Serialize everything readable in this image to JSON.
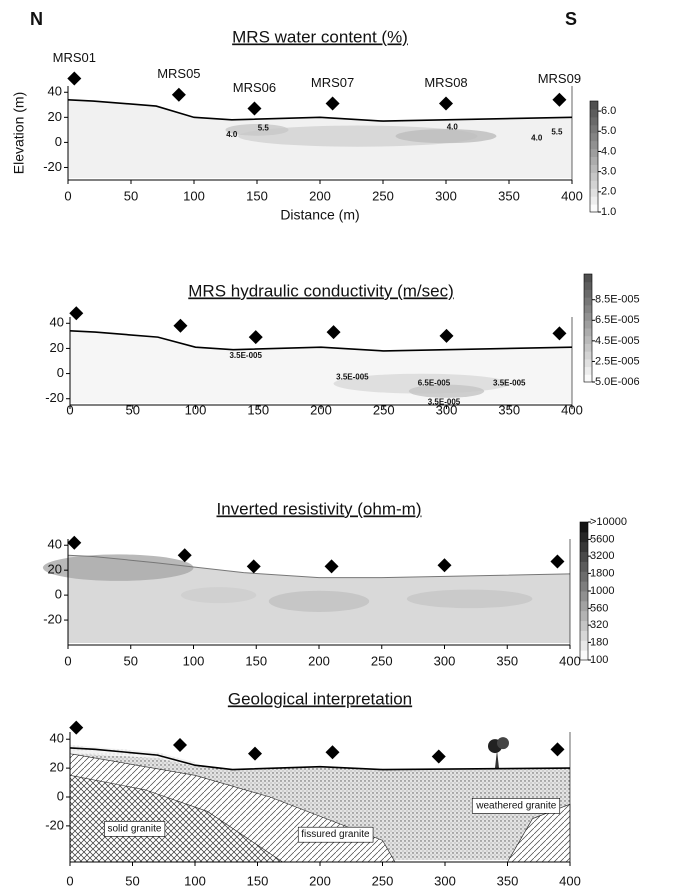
{
  "chart_data": [
    {
      "type": "section",
      "title": "MRS water content (%)",
      "left_label": "N",
      "right_label": "S",
      "xlabel": "Distance (m)",
      "ylabel": "Elevation (m)",
      "xlim": [
        0,
        400
      ],
      "xticks": [
        0,
        50,
        100,
        150,
        200,
        250,
        300,
        350,
        400
      ],
      "ylim": [
        -30,
        45
      ],
      "yticks": [
        -20,
        0,
        20,
        40
      ],
      "markers": {
        "labels": [
          "MRS01",
          "MRS05",
          "MRS06",
          "MRS07",
          "MRS08",
          "MRS09"
        ],
        "x": [
          5,
          88,
          148,
          210,
          300,
          390
        ],
        "y": [
          51,
          38,
          27,
          31,
          31,
          34
        ]
      },
      "surface": {
        "x": [
          0,
          20,
          70,
          100,
          130,
          200,
          250,
          400
        ],
        "y": [
          34,
          33,
          29,
          20,
          18,
          20,
          17,
          20
        ]
      },
      "colorbar": {
        "clim": [
          1,
          6.5
        ],
        "log": false,
        "ticks": [
          {
            "value": 6,
            "label": "6.0"
          },
          {
            "value": 5,
            "label": "5.0"
          },
          {
            "value": 4,
            "label": "4.0"
          },
          {
            "value": 3,
            "label": "3.0"
          },
          {
            "value": 2,
            "label": "2.0"
          },
          {
            "value": 1,
            "label": "1.0"
          }
        ]
      },
      "annotations": [
        {
          "text": "4.0",
          "x": 130,
          "y": 6
        },
        {
          "text": "5.5",
          "x": 155,
          "y": 11
        },
        {
          "text": "4.0",
          "x": 305,
          "y": 12
        },
        {
          "text": "4.0",
          "x": 372,
          "y": 3
        },
        {
          "text": "5.5",
          "x": 388,
          "y": 8
        }
      ]
    },
    {
      "type": "section",
      "title": "MRS hydraulic conductivity (m/sec)",
      "xlim": [
        0,
        400
      ],
      "xticks": [
        0,
        50,
        100,
        150,
        200,
        250,
        300,
        350,
        400
      ],
      "ylim": [
        -25,
        45
      ],
      "yticks": [
        -20,
        0,
        20,
        40
      ],
      "markers": {
        "x": [
          5,
          88,
          148,
          210,
          300,
          390
        ],
        "y": [
          48,
          38,
          29,
          33,
          30,
          32
        ]
      },
      "surface": {
        "x": [
          0,
          20,
          70,
          100,
          130,
          200,
          250,
          400
        ],
        "y": [
          34,
          33,
          29,
          21,
          19,
          21,
          18,
          21
        ]
      },
      "colorbar": {
        "clim": [
          5e-06,
          0.00011
        ],
        "log": false,
        "ticks": [
          {
            "value": 8.5e-05,
            "label": "8.5E-005"
          },
          {
            "value": 6.5e-05,
            "label": "6.5E-005"
          },
          {
            "value": 4.5e-05,
            "label": "4.5E-005"
          },
          {
            "value": 2.5e-05,
            "label": "2.5E-005"
          },
          {
            "value": 5e-06,
            "label": "5.0E-006"
          }
        ]
      },
      "annotations": [
        {
          "text": "3.5E-005",
          "x": 140,
          "y": 14
        },
        {
          "text": "3.5E-005",
          "x": 225,
          "y": -3
        },
        {
          "text": "6.5E-005",
          "x": 290,
          "y": -8
        },
        {
          "text": "3.5E-005",
          "x": 350,
          "y": -8
        },
        {
          "text": "3.5E-005",
          "x": 298,
          "y": -23
        }
      ]
    },
    {
      "type": "section",
      "title": "Inverted resistivity (ohm-m)",
      "xlim": [
        0,
        400
      ],
      "xticks": [
        0,
        50,
        100,
        150,
        200,
        250,
        300,
        350,
        400
      ],
      "ylim": [
        -40,
        45
      ],
      "yticks": [
        -20,
        0,
        20,
        40
      ],
      "markers": {
        "x": [
          5,
          93,
          148,
          210,
          300,
          390
        ],
        "y": [
          42,
          32,
          23,
          23,
          24,
          27
        ]
      },
      "surface": {
        "x": [
          0,
          20,
          70,
          140,
          200,
          250,
          400
        ],
        "y": [
          32,
          31,
          26,
          18,
          14,
          14,
          17
        ]
      },
      "colorbar": {
        "clim": [
          100,
          10000
        ],
        "log": true,
        "ticks": [
          {
            "value": 10000,
            "label": ">10000"
          },
          5600,
          3200,
          1800,
          1000,
          560,
          320,
          180,
          100
        ]
      }
    },
    {
      "type": "section",
      "title": "Geological interpretation",
      "xlim": [
        0,
        400
      ],
      "xticks": [
        0,
        50,
        100,
        150,
        200,
        250,
        300,
        350,
        400
      ],
      "ylim": [
        -45,
        45
      ],
      "yticks": [
        -20,
        0,
        20,
        40
      ],
      "markers": {
        "x": [
          5,
          88,
          148,
          210,
          295,
          390
        ],
        "y": [
          48,
          36,
          30,
          31,
          28,
          33
        ]
      },
      "surface": {
        "x": [
          0,
          20,
          70,
          100,
          130,
          200,
          250,
          400
        ],
        "y": [
          34,
          33,
          29,
          22,
          19,
          21,
          19,
          20
        ]
      },
      "annotation_box": true,
      "annotations": [
        {
          "text": "solid granite",
          "x": 30,
          "y": -22
        },
        {
          "text": "fissured granite",
          "x": 185,
          "y": -26
        },
        {
          "text": "weathered granite",
          "x": 325,
          "y": -6
        }
      ]
    }
  ]
}
